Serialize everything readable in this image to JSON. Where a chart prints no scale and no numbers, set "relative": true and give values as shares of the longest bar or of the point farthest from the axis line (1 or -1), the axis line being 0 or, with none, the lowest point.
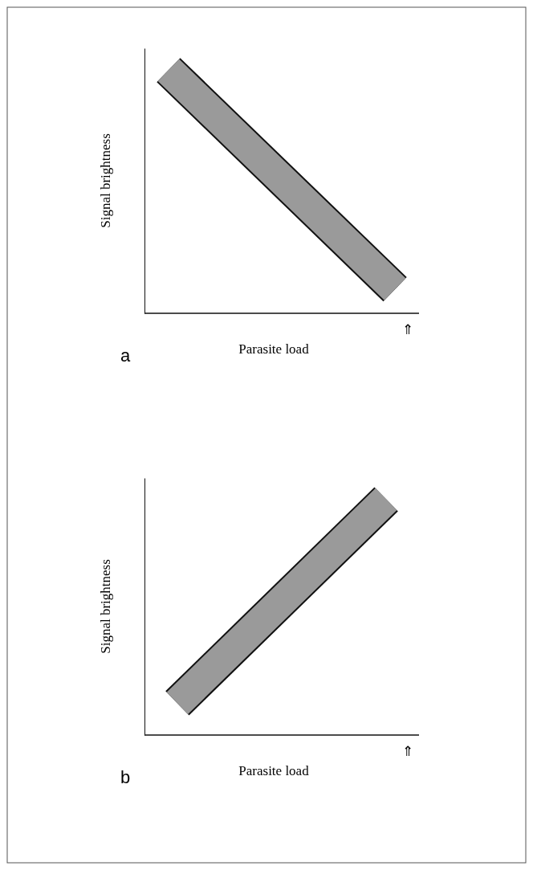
{
  "chart_data": [
    {
      "type": "line",
      "relative": true,
      "categories": [
        null,
        null
      ],
      "xlabel": "Parasite load",
      "ylabel": "Signal brightness",
      "annotations": [
        "⇑",
        "a"
      ],
      "series": [
        {
          "color": "#9a9a9a",
          "values": [
            1,
            0.099
          ]
        }
      ]
    },
    {
      "type": "line",
      "relative": true,
      "categories": [
        null,
        null
      ],
      "xlabel": "Parasite load",
      "ylabel": "Signal brightness",
      "annotations": [
        "⇑",
        "b"
      ],
      "series": [
        {
          "color": "#9a9a9a",
          "values": [
            0.135,
            1
          ]
        }
      ]
    }
  ]
}
